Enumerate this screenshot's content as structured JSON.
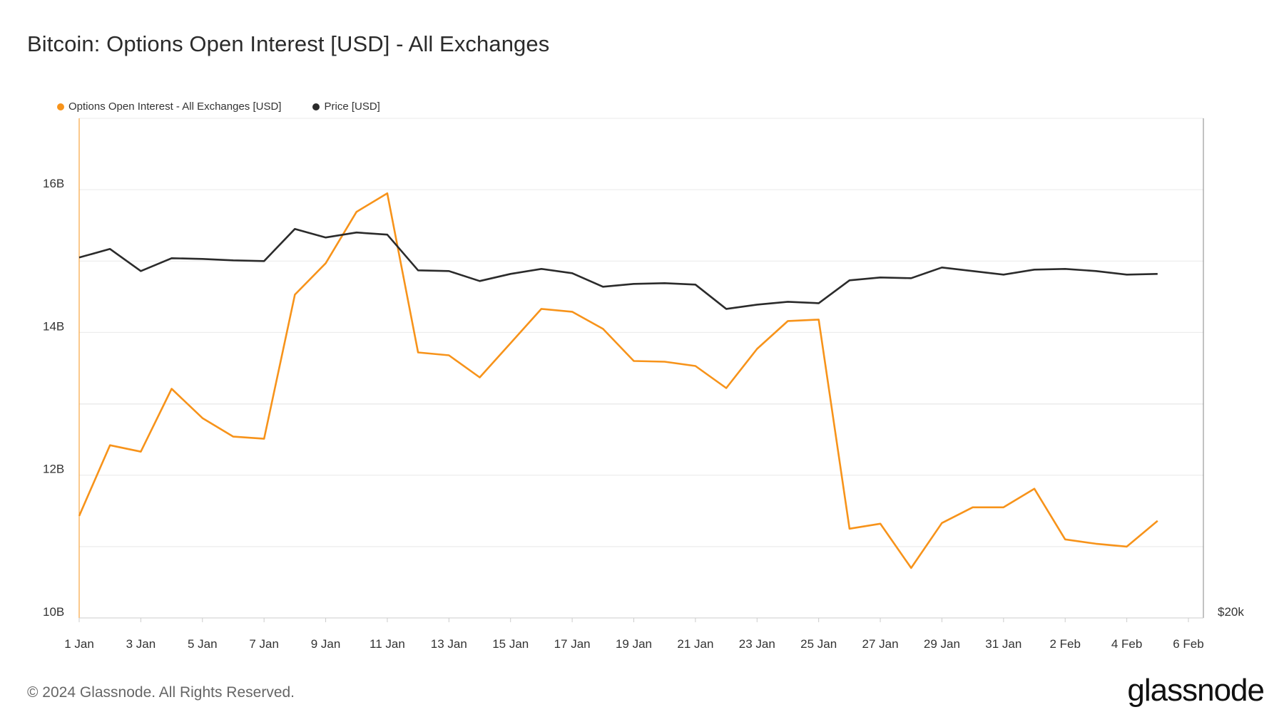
{
  "page": {
    "title": "Bitcoin: Options Open Interest [USD] - All Exchanges",
    "copyright": "© 2024 Glassnode. All Rights Reserved.",
    "brand": "glassnode"
  },
  "colors": {
    "oi": "#f7931a",
    "price": "#2b2b2b",
    "grid": "#e9e9e9",
    "axis": "#cccccc"
  },
  "legend": [
    {
      "label": "Options Open Interest - All Exchanges [USD]",
      "color": "#f7931a"
    },
    {
      "label": "Price [USD]",
      "color": "#2b2b2b"
    }
  ],
  "chart_data": {
    "type": "line",
    "title": "Bitcoin: Options Open Interest [USD] - All Exchanges",
    "x_tick_labels": [
      "1 Jan",
      "3 Jan",
      "5 Jan",
      "7 Jan",
      "9 Jan",
      "11 Jan",
      "13 Jan",
      "15 Jan",
      "17 Jan",
      "19 Jan",
      "21 Jan",
      "23 Jan",
      "25 Jan",
      "27 Jan",
      "29 Jan",
      "31 Jan",
      "2 Feb",
      "4 Feb",
      "6 Feb"
    ],
    "y_left_ticks": [
      "10B",
      "12B",
      "14B",
      "16B"
    ],
    "y_left_tick_values": [
      10,
      12,
      14,
      16
    ],
    "y_left_range": [
      10,
      17
    ],
    "y_left_unit": "B USD",
    "y_right_ticks": [
      "$20k"
    ],
    "grid": true,
    "legend_position": "top-left",
    "dates": [
      "1 Jan",
      "2 Jan",
      "3 Jan",
      "4 Jan",
      "5 Jan",
      "6 Jan",
      "7 Jan",
      "8 Jan",
      "9 Jan",
      "10 Jan",
      "11 Jan",
      "12 Jan",
      "13 Jan",
      "14 Jan",
      "15 Jan",
      "16 Jan",
      "17 Jan",
      "18 Jan",
      "19 Jan",
      "20 Jan",
      "21 Jan",
      "22 Jan",
      "23 Jan",
      "24 Jan",
      "25 Jan",
      "26 Jan",
      "27 Jan",
      "28 Jan",
      "29 Jan",
      "30 Jan",
      "31 Jan",
      "1 Feb",
      "2 Feb",
      "3 Feb",
      "4 Feb",
      "5 Feb"
    ],
    "series": [
      {
        "name": "Options Open Interest - All Exchanges [USD]",
        "axis": "left",
        "values": [
          11.43,
          12.42,
          12.33,
          13.21,
          12.8,
          12.54,
          12.51,
          14.53,
          14.97,
          15.69,
          15.95,
          13.72,
          13.68,
          13.37,
          13.85,
          14.33,
          14.29,
          14.05,
          13.6,
          13.59,
          13.53,
          13.22,
          13.77,
          14.16,
          14.18,
          11.25,
          11.32,
          10.7,
          11.33,
          11.55,
          11.55,
          11.81,
          11.1,
          11.04,
          11.0,
          11.36
        ]
      },
      {
        "name": "Price [USD]",
        "axis": "right",
        "values": [
          15.05,
          15.17,
          14.86,
          15.04,
          15.03,
          15.01,
          15.0,
          15.45,
          15.33,
          15.4,
          15.37,
          14.87,
          14.86,
          14.72,
          14.82,
          14.89,
          14.83,
          14.64,
          14.68,
          14.69,
          14.67,
          14.33,
          14.39,
          14.43,
          14.41,
          14.73,
          14.77,
          14.76,
          14.91,
          14.86,
          14.81,
          14.88,
          14.89,
          14.86,
          14.81,
          14.82
        ]
      }
    ]
  }
}
